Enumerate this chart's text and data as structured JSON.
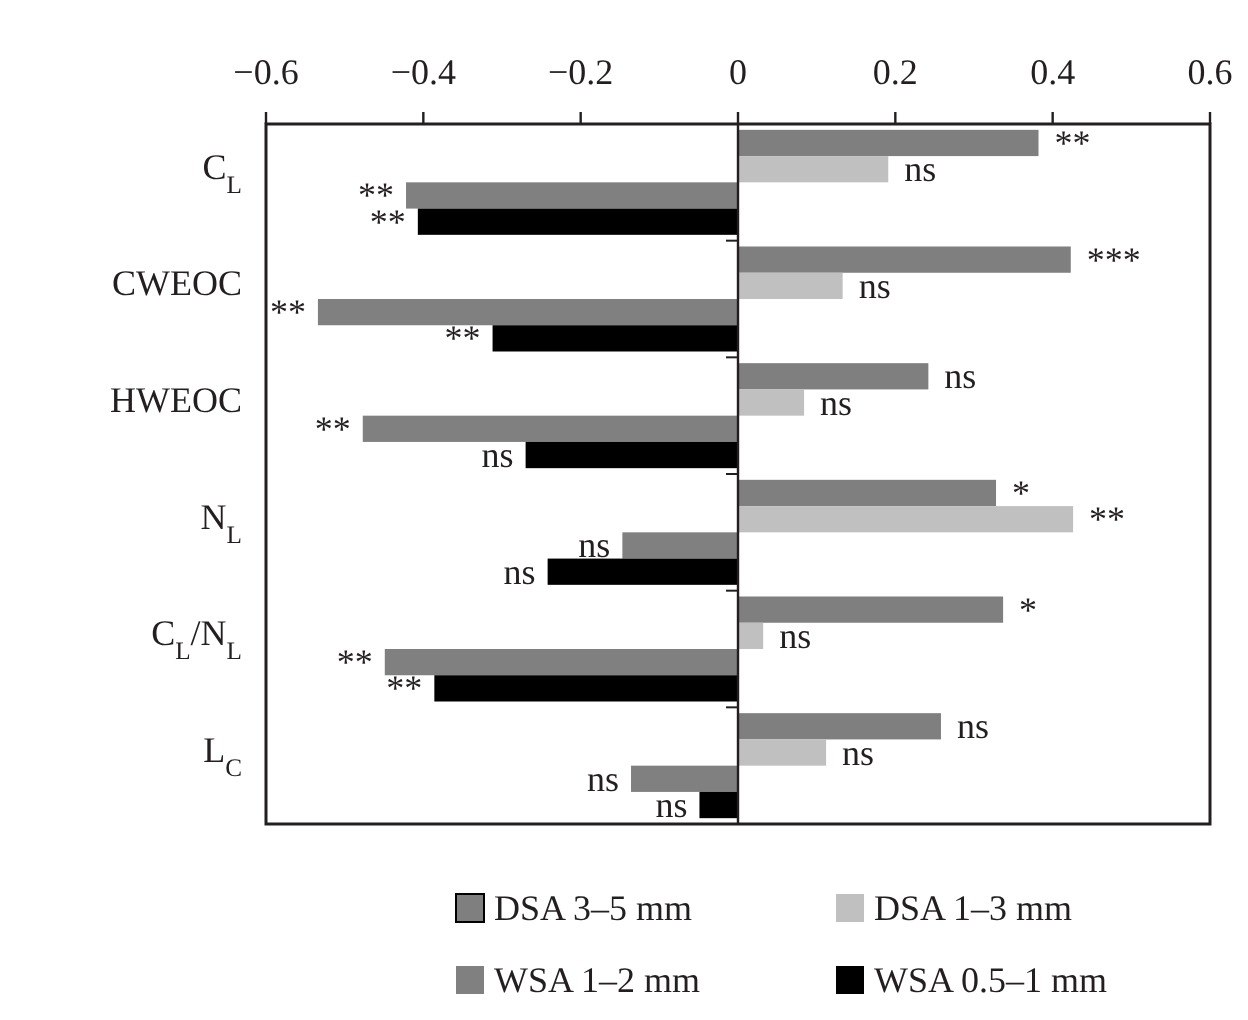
{
  "chart_data": {
    "type": "bar",
    "orientation": "horizontal",
    "categories": [
      "C$_{L}$",
      "CWEOC",
      "HWEOC",
      "N$_{L}$",
      "C$_{L}$/N$_{L}$",
      "L$_{C}$"
    ],
    "series": [
      {
        "name": "DSA 3–5 mm",
        "color": "#7f7f7f",
        "values": [
          0.382,
          0.423,
          0.242,
          0.328,
          0.337,
          0.258
        ],
        "value_labels": [
          "**",
          "***",
          "ns",
          "*",
          "*",
          "ns"
        ]
      },
      {
        "name": "DSA 1–3 mm",
        "color": "#c0c0c0",
        "values": [
          0.191,
          0.133,
          0.084,
          0.426,
          0.032,
          0.112
        ],
        "value_labels": [
          "ns",
          "ns",
          "ns",
          "**",
          "ns",
          "ns"
        ]
      },
      {
        "name": "WSA 1–2 mm",
        "color": "#808080",
        "values": [
          -0.422,
          -0.534,
          -0.477,
          -0.147,
          -0.449,
          -0.136
        ],
        "value_labels": [
          "**",
          "**",
          "**",
          "ns",
          "**",
          "ns"
        ]
      },
      {
        "name": "WSA 0.5–1 mm",
        "color": "#000000",
        "values": [
          -0.407,
          -0.312,
          -0.27,
          -0.242,
          -0.386,
          -0.049
        ],
        "value_labels": [
          "**",
          "**",
          "ns",
          "ns",
          "**",
          "ns"
        ]
      }
    ],
    "xlim": [
      -0.6,
      0.6
    ],
    "xticks": [
      {
        "value": -0.6,
        "label": "−0.6"
      },
      {
        "value": -0.4,
        "label": "−0.4"
      },
      {
        "value": -0.2,
        "label": "−0.2"
      },
      0,
      0.2,
      0.4,
      0.6
    ],
    "legend": "bottom"
  }
}
